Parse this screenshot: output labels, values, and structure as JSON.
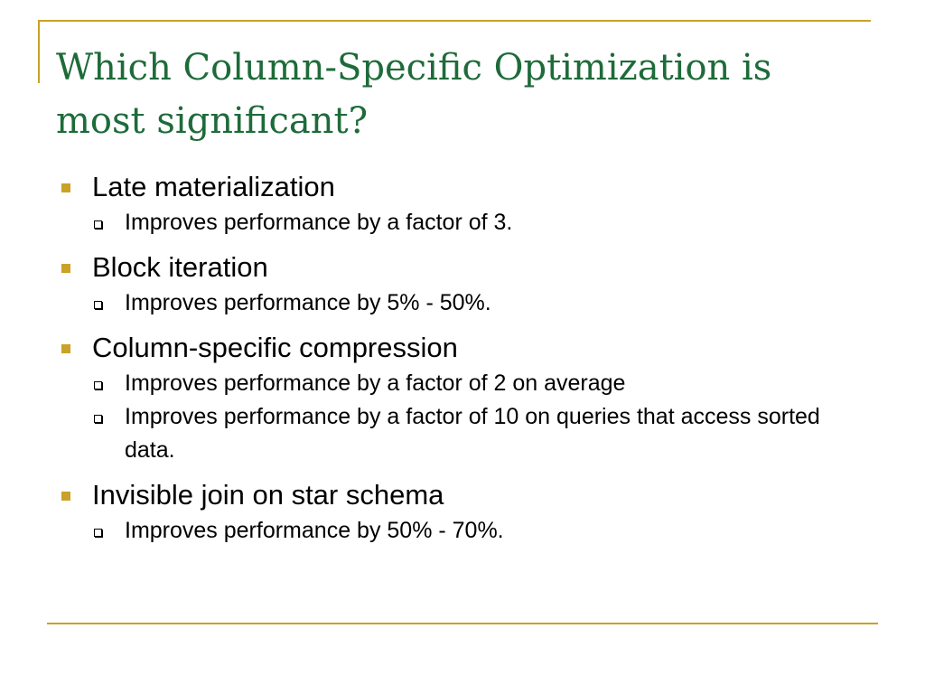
{
  "slide": {
    "title": "Which Column-Specific Optimization is most significant?",
    "colors": {
      "title": "#1e6b3a",
      "accent": "#c9a227",
      "text": "#000000"
    },
    "bullets": [
      {
        "text": "Late materialization",
        "subitems": [
          "Improves performance by a factor of 3."
        ]
      },
      {
        "text": "Block iteration",
        "subitems": [
          "Improves performance by 5% - 50%."
        ]
      },
      {
        "text": "Column-specific compression",
        "subitems": [
          "Improves performance by a factor of 2 on average",
          "Improves performance by a factor of 10 on queries that access sorted data."
        ]
      },
      {
        "text": "Invisible join on star schema",
        "subitems": [
          "Improves performance by 50% - 70%."
        ]
      }
    ]
  }
}
